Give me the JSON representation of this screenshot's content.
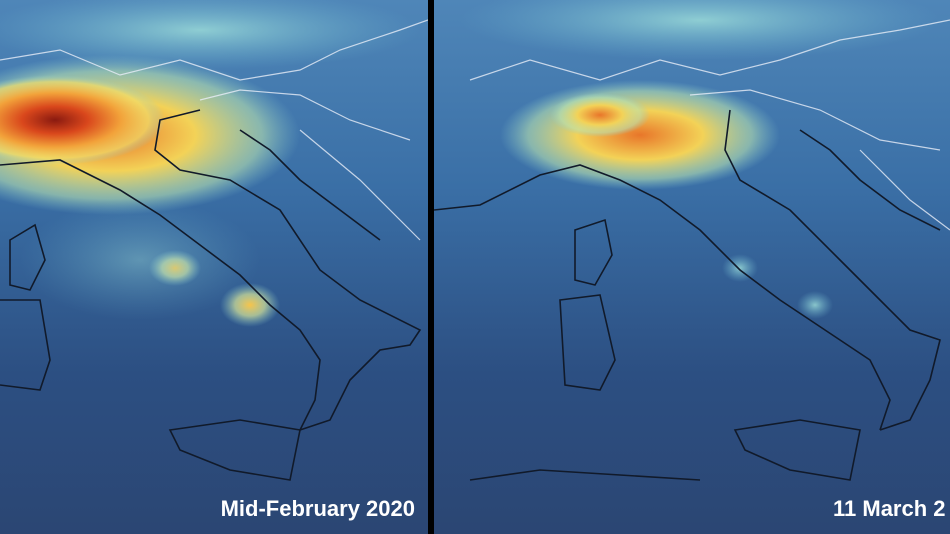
{
  "panels": [
    {
      "label": "Mid-February 2020"
    },
    {
      "label": "11 March 2"
    }
  ]
}
